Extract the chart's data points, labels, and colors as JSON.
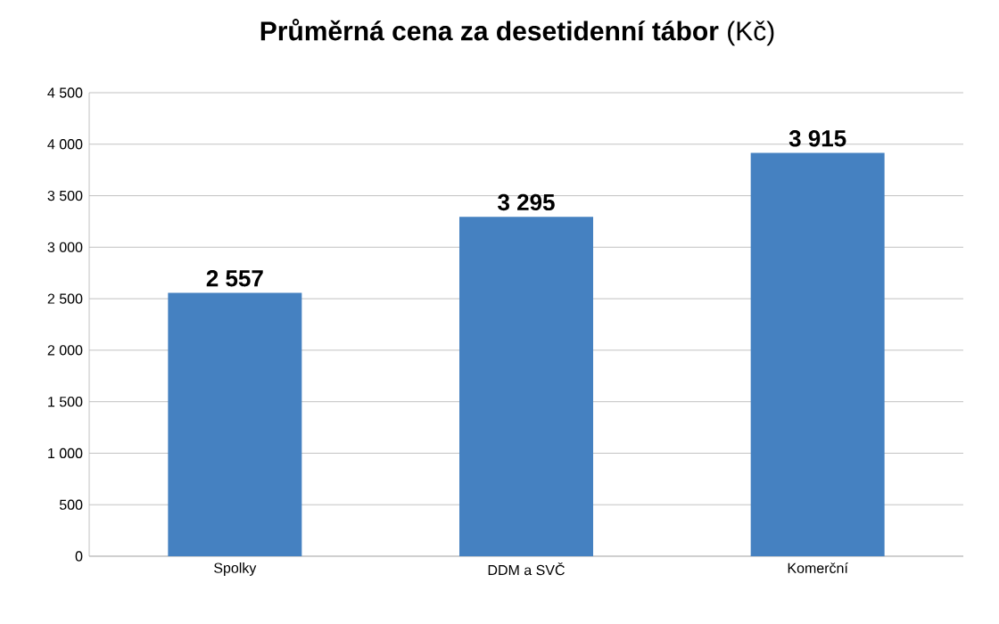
{
  "chart_data": {
    "type": "bar",
    "title": "**Průměrná cena za desetidenní tábor** (Kč)",
    "categories": [
      "Spolky",
      "DDM a SVČ",
      "Komerční"
    ],
    "values": [
      2557,
      3295,
      3915
    ],
    "color": "#4581c1",
    "value_labels": [
      "2 557",
      "3 295",
      "3 915"
    ],
    "ylim": [
      0,
      4500
    ],
    "yticks": [
      0,
      {
        "value": 500,
        "label": "500"
      },
      {
        "value": 1000,
        "label": "1 000"
      },
      {
        "value": 1500,
        "label": "1 500"
      },
      {
        "value": 2000,
        "label": "2 000"
      },
      {
        "value": 2500,
        "label": "2 500"
      },
      {
        "value": 3000,
        "label": "3 000"
      },
      {
        "value": 3500,
        "label": "3 500"
      },
      {
        "value": 4000,
        "label": "4 000"
      },
      {
        "value": 4500,
        "label": "4 500"
      }
    ],
    "grid": "y"
  }
}
